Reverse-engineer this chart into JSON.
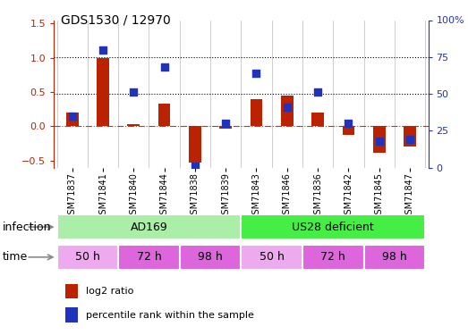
{
  "title": "GDS1530 / 12970",
  "samples": [
    "GSM71837",
    "GSM71841",
    "GSM71840",
    "GSM71844",
    "GSM71838",
    "GSM71839",
    "GSM71843",
    "GSM71846",
    "GSM71836",
    "GSM71842",
    "GSM71845",
    "GSM71847"
  ],
  "log2_ratio": [
    0.2,
    1.0,
    0.03,
    0.33,
    -0.53,
    -0.03,
    0.4,
    0.45,
    0.2,
    -0.12,
    -0.38,
    -0.3
  ],
  "percentile_rank": [
    35,
    80,
    51,
    68,
    1,
    30,
    64,
    41,
    51,
    30,
    18,
    19
  ],
  "bar_color": "#bb2200",
  "dot_color": "#2233bb",
  "infection_groups": [
    {
      "label": "AD169",
      "start": 0,
      "end": 6,
      "color": "#aaeea8"
    },
    {
      "label": "US28 deficient",
      "start": 6,
      "end": 12,
      "color": "#44ee44"
    }
  ],
  "time_colors": [
    "#eeaaee",
    "#dd66dd",
    "#dd66dd",
    "#eeaaee",
    "#dd66dd",
    "#dd66dd"
  ],
  "time_labels": [
    "50 h",
    "72 h",
    "98 h",
    "50 h",
    "72 h",
    "98 h"
  ],
  "time_starts": [
    0,
    2,
    4,
    6,
    8,
    10
  ],
  "time_ends": [
    2,
    4,
    6,
    8,
    10,
    12
  ],
  "ylim_left": [
    -0.6,
    1.55
  ],
  "ylim_right": [
    0,
    100
  ],
  "yticks_left": [
    -0.5,
    0.0,
    0.5,
    1.0,
    1.5
  ],
  "yticks_right": [
    0,
    25,
    50,
    75,
    100
  ],
  "infection_label": "infection",
  "time_label": "time",
  "legend_red": "log2 ratio",
  "legend_blue": "percentile rank within the sample",
  "hline_color": "#cc3311",
  "dot_line_colors": [
    "black",
    "black"
  ]
}
